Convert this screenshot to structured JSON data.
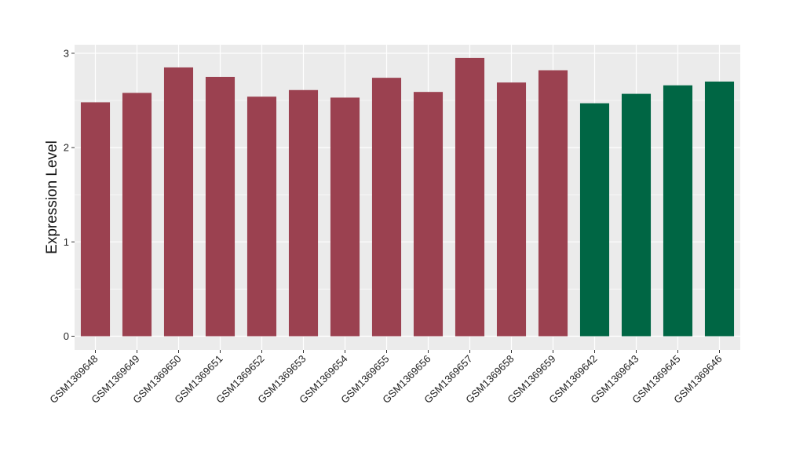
{
  "chart_data": {
    "type": "bar",
    "title": "",
    "xlabel": "",
    "ylabel": "Expression Level",
    "ylim": [
      0,
      3.15
    ],
    "yticks": [
      "0",
      "1",
      "2",
      "3"
    ],
    "grid": true,
    "categories": [
      "GSM1369648",
      "GSM1369649",
      "GSM1369650",
      "GSM1369651",
      "GSM1369652",
      "GSM1369653",
      "GSM1369654",
      "GSM1369655",
      "GSM1369656",
      "GSM1369657",
      "GSM1369658",
      "GSM1369659",
      "GSM1369642",
      "GSM1369643",
      "GSM1369645",
      "GSM1369646"
    ],
    "values": [
      2.48,
      2.58,
      2.85,
      2.75,
      2.54,
      2.61,
      2.53,
      2.74,
      2.59,
      2.95,
      2.69,
      2.82,
      2.47,
      2.57,
      2.66,
      2.7
    ],
    "bar_colors": [
      "#9b4150",
      "#9b4150",
      "#9b4150",
      "#9b4150",
      "#9b4150",
      "#9b4150",
      "#9b4150",
      "#9b4150",
      "#9b4150",
      "#9b4150",
      "#9b4150",
      "#9b4150",
      "#006644",
      "#006644",
      "#006644",
      "#006644"
    ],
    "panel_background": "#ebebeb",
    "grid_color": "#ffffff"
  }
}
